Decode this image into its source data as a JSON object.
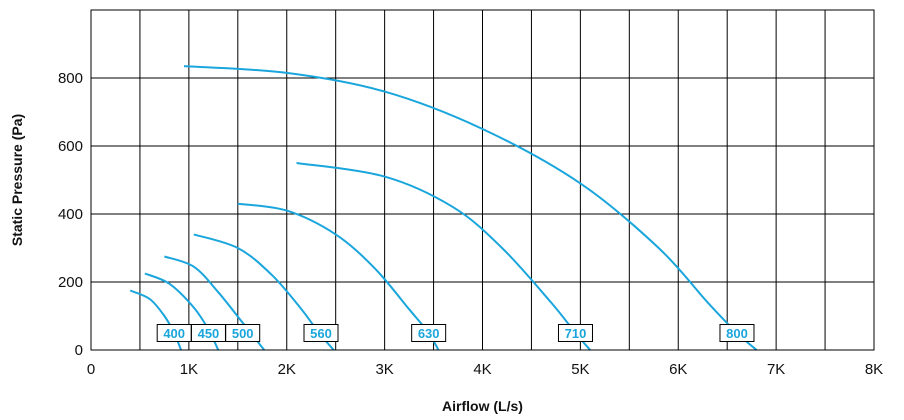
{
  "chart_data": {
    "type": "line",
    "title": "",
    "xlabel": "Airflow (L/s)",
    "ylabel": "Static Pressure (Pa)",
    "xlim": [
      0,
      8000
    ],
    "ylim": [
      0,
      1000
    ],
    "x_ticks": [
      {
        "value": 0,
        "label": "0"
      },
      {
        "value": 1000,
        "label": "1K"
      },
      {
        "value": 2000,
        "label": "2K"
      },
      {
        "value": 3000,
        "label": "3K"
      },
      {
        "value": 4000,
        "label": "4K"
      },
      {
        "value": 5000,
        "label": "5K"
      },
      {
        "value": 6000,
        "label": "6K"
      },
      {
        "value": 7000,
        "label": "7K"
      },
      {
        "value": 8000,
        "label": "8K"
      }
    ],
    "x_gridlines": [
      500,
      1000,
      1500,
      2000,
      2500,
      3000,
      3500,
      4000,
      4500,
      5000,
      5500,
      6000,
      6500,
      7000,
      7500
    ],
    "y_ticks": [
      {
        "value": 0,
        "label": "0"
      },
      {
        "value": 200,
        "label": "200"
      },
      {
        "value": 400,
        "label": "400"
      },
      {
        "value": 600,
        "label": "600"
      },
      {
        "value": 800,
        "label": "800"
      }
    ],
    "y_gridlines": [
      200,
      400,
      600,
      800
    ],
    "grid": true,
    "legend": "none",
    "colors": {
      "curve": "#1aa6dc",
      "label_text": "#1aa6dc",
      "grid": "#000000",
      "label_border": "#000000"
    },
    "series": [
      {
        "name": "400",
        "label_at": [
          850,
          50
        ],
        "points": [
          [
            400,
            175
          ],
          [
            600,
            150
          ],
          [
            750,
            100
          ],
          [
            850,
            50
          ],
          [
            920,
            0
          ]
        ]
      },
      {
        "name": "450",
        "label_at": [
          1200,
          50
        ],
        "points": [
          [
            550,
            225
          ],
          [
            800,
            195
          ],
          [
            1050,
            125
          ],
          [
            1200,
            60
          ],
          [
            1300,
            0
          ]
        ]
      },
      {
        "name": "500",
        "label_at": [
          1550,
          50
        ],
        "points": [
          [
            750,
            275
          ],
          [
            1050,
            245
          ],
          [
            1300,
            170
          ],
          [
            1550,
            80
          ],
          [
            1770,
            0
          ]
        ]
      },
      {
        "name": "560",
        "label_at": [
          2350,
          50
        ],
        "points": [
          [
            1050,
            340
          ],
          [
            1500,
            300
          ],
          [
            1850,
            220
          ],
          [
            2150,
            120
          ],
          [
            2330,
            50
          ],
          [
            2480,
            0
          ]
        ]
      },
      {
        "name": "630",
        "label_at": [
          3450,
          50
        ],
        "points": [
          [
            1500,
            430
          ],
          [
            2000,
            410
          ],
          [
            2500,
            340
          ],
          [
            2900,
            240
          ],
          [
            3250,
            120
          ],
          [
            3450,
            50
          ],
          [
            3550,
            0
          ]
        ]
      },
      {
        "name": "710",
        "label_at": [
          4950,
          50
        ],
        "points": [
          [
            2100,
            550
          ],
          [
            3000,
            510
          ],
          [
            3700,
            420
          ],
          [
            4200,
            300
          ],
          [
            4700,
            140
          ],
          [
            4950,
            50
          ],
          [
            5100,
            0
          ]
        ]
      },
      {
        "name": "800",
        "label_at": [
          6600,
          50
        ],
        "points": [
          [
            950,
            835
          ],
          [
            2000,
            815
          ],
          [
            3000,
            760
          ],
          [
            4000,
            650
          ],
          [
            5000,
            490
          ],
          [
            5800,
            300
          ],
          [
            6300,
            140
          ],
          [
            6600,
            50
          ],
          [
            6800,
            0
          ]
        ]
      }
    ]
  }
}
